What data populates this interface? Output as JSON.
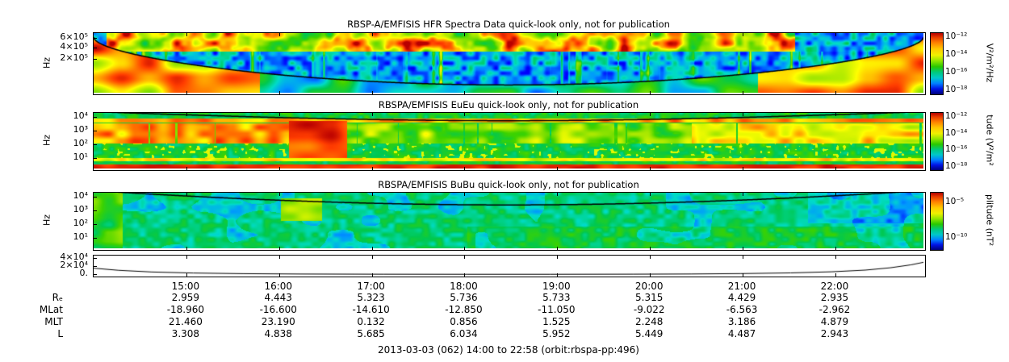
{
  "caption": "2013-03-03 (062) 14:00 to 22:58 (orbit:rbspa-pp:496)",
  "chart_data": {
    "type": "heatmap",
    "description": "RBSP-A EMFISIS quick-look stack: HFR electric-field spectrogram, EuEu electric spectral density spectrogram, BuBu magnetic spectral density spectrogram, a low frequency line plot, and an orbit ephemeris table.",
    "x_axis": {
      "start": "14:00",
      "end": "22:58",
      "date": "2013-03-03 (062)",
      "ticks": [
        "15:00",
        "16:00",
        "17:00",
        "18:00",
        "19:00",
        "20:00",
        "21:00",
        "22:00"
      ]
    },
    "panels": [
      {
        "kind": "spectrogram",
        "title": "RBSP-A/EMFISIS  HFR Spectra Data quick-look only, not for publication",
        "ylabel": "Hz",
        "yscale": "linear",
        "y_range_hz": [
          0,
          700000
        ],
        "yticks": [
          {
            "label": "6×10⁵",
            "pos": 0.08
          },
          {
            "label": "4×10⁵",
            "pos": 0.24
          },
          {
            "label": "2×10⁵",
            "pos": 0.42
          }
        ],
        "colorbar": {
          "unit": "V²/m²/Hz",
          "range": [
            "1e-18",
            "1e-12"
          ],
          "ticks": [
            {
              "label": "10⁻¹²",
              "pos": 0.07
            },
            {
              "label": "10⁻¹⁴",
              "pos": 0.36
            },
            {
              "label": "10⁻¹⁶",
              "pos": 0.65
            },
            {
              "label": "10⁻¹⁸",
              "pos": 0.94
            }
          ]
        },
        "summary": "Intense banded yellow-red emission above ~3×10⁵ Hz across most of the interval; blue background below with green vertical bursts; black upper-hybrid/density curve dips from the top at both ends to near the panel bottom around apogee; strong red emission below the curve near perigee at both edges."
      },
      {
        "kind": "spectrogram",
        "title": "RBSPA/EMFISIS  EuEu quick-look only, not for publication",
        "ylabel": "Hz",
        "yscale": "log",
        "y_range_hz": [
          5,
          12000
        ],
        "yticks": [
          {
            "label": "10⁴",
            "pos": 0.07
          },
          {
            "label": "10³",
            "pos": 0.31
          },
          {
            "label": "10²",
            "pos": 0.55
          },
          {
            "label": "10¹",
            "pos": 0.79
          }
        ],
        "colorbar": {
          "unit": "tude (V²/m²",
          "range": [
            "1e-18",
            "1e-12"
          ],
          "ticks": [
            {
              "label": "10⁻¹²",
              "pos": 0.07
            },
            {
              "label": "10⁻¹⁴",
              "pos": 0.36
            },
            {
              "label": "10⁻¹⁶",
              "pos": 0.65
            },
            {
              "label": "10⁻¹⁸",
              "pos": 0.94
            }
          ]
        },
        "summary": "Green background with intense red-orange band between ~10² and 10³ Hz, strongest near the start and end of the interval; broadband red burst near 16:20-17:00; thin red band just below the black fce curve near 10⁴ Hz; persistent red strip at the lowest frequencies."
      },
      {
        "kind": "spectrogram",
        "title": "RBSPA/EMFISIS  BuBu quick-look only, not for publication",
        "ylabel": "Hz",
        "yscale": "log",
        "y_range_hz": [
          5,
          12000
        ],
        "yticks": [
          {
            "label": "10⁴",
            "pos": 0.07
          },
          {
            "label": "10³",
            "pos": 0.31
          },
          {
            "label": "10²",
            "pos": 0.55
          },
          {
            "label": "10¹",
            "pos": 0.79
          }
        ],
        "colorbar": {
          "unit": "plitude (nT²",
          "range": [
            "1e-10",
            "1e-5"
          ],
          "ticks": [
            {
              "label": "10⁻⁵",
              "pos": 0.17
            },
            {
              "label": "10⁻¹⁰",
              "pos": 0.79
            }
          ]
        },
        "summary": "Mostly uniform green/teal magnetic spectral density with cyan patches; bright green enhancement near 16:20 between ~10² and 10³ Hz; black fce curve dips from the top edges toward the middle of the interval."
      },
      {
        "kind": "line",
        "yscale": "linear",
        "y_max": 46000,
        "yticks": [
          {
            "label": "4×10⁴",
            "pos": 0.12
          },
          {
            "label": "2×10⁴",
            "pos": 0.5
          },
          {
            "label": "0.",
            "pos": 0.88
          }
        ],
        "series": {
          "name": "frequency line (Hz)",
          "x_fraction": [
            0,
            0.03,
            0.07,
            0.12,
            0.18,
            0.25,
            0.35,
            0.45,
            0.55,
            0.65,
            0.72,
            0.78,
            0.84,
            0.89,
            0.93,
            0.96,
            0.985,
            1.0
          ],
          "values": [
            16000,
            11000,
            7000,
            4500,
            3000,
            2200,
            1700,
            1500,
            1500,
            1800,
            2300,
            3200,
            4800,
            7500,
            11500,
            17000,
            24000,
            30000
          ]
        },
        "summary": "U-shaped curve: high near perigee at both ends of the orbit, near zero around apogee."
      }
    ],
    "ephemeris": {
      "rows": [
        {
          "label": "Rₑ",
          "values": [
            "2.959",
            "4.443",
            "5.323",
            "5.736",
            "5.733",
            "5.315",
            "4.429",
            "2.935"
          ]
        },
        {
          "label": "MLat",
          "values": [
            "-18.960",
            "-16.600",
            "-14.610",
            "-12.850",
            "-11.050",
            "-9.022",
            "-6.563",
            "-2.962"
          ]
        },
        {
          "label": "MLT",
          "values": [
            "21.460",
            "23.190",
            "0.132",
            "0.856",
            "1.525",
            "2.248",
            "3.186",
            "4.879"
          ]
        },
        {
          "label": "L",
          "values": [
            "3.308",
            "4.838",
            "5.685",
            "6.034",
            "5.952",
            "5.449",
            "4.487",
            "2.943"
          ]
        }
      ]
    }
  }
}
